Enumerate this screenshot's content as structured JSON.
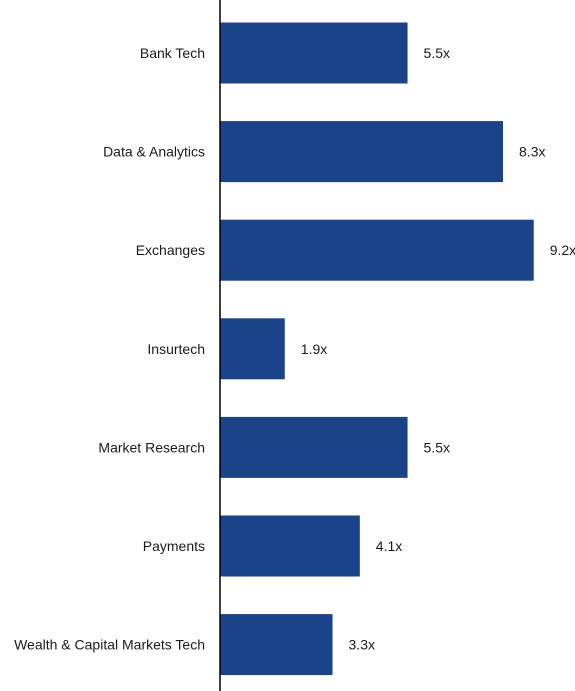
{
  "chart_data": {
    "type": "bar",
    "orientation": "horizontal",
    "title": "",
    "xlabel": "",
    "ylabel": "",
    "categories": [
      "Bank Tech",
      "Data & Analytics",
      "Exchanges",
      "Insurtech",
      "Market Research",
      "Payments",
      "Wealth & Capital Markets Tech"
    ],
    "values": [
      5.5,
      8.3,
      9.2,
      1.9,
      5.5,
      4.1,
      3.3
    ],
    "value_labels": [
      "5.5x",
      "8.3x",
      "9.2x",
      "1.9x",
      "5.5x",
      "4.1x",
      "3.3x"
    ],
    "xlim": [
      0,
      10.5
    ],
    "grid": false,
    "legend": "none",
    "colors": {
      "bar": "#1b4389",
      "axis": "#000000",
      "text": "#1a1a1a"
    }
  }
}
